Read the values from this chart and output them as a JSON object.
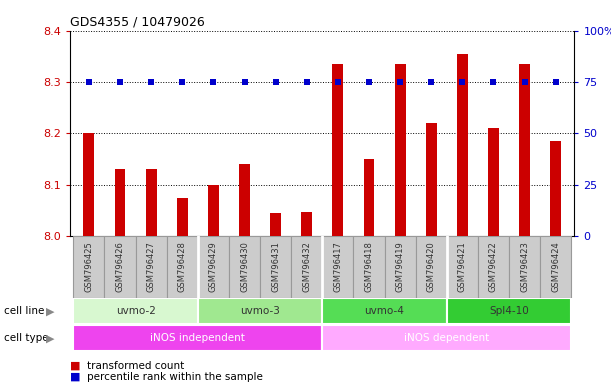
{
  "title": "GDS4355 / 10479026",
  "samples": [
    "GSM796425",
    "GSM796426",
    "GSM796427",
    "GSM796428",
    "GSM796429",
    "GSM796430",
    "GSM796431",
    "GSM796432",
    "GSM796417",
    "GSM796418",
    "GSM796419",
    "GSM796420",
    "GSM796421",
    "GSM796422",
    "GSM796423",
    "GSM796424"
  ],
  "transformed_count": [
    8.2,
    8.13,
    8.13,
    8.075,
    8.1,
    8.14,
    8.045,
    8.048,
    8.335,
    8.15,
    8.335,
    8.22,
    8.355,
    8.21,
    8.335,
    8.185
  ],
  "percentile_rank": [
    75,
    75,
    75,
    75,
    75,
    75,
    75,
    75,
    75,
    75,
    75,
    75,
    75,
    75,
    75,
    75
  ],
  "ylim_left": [
    8.0,
    8.4
  ],
  "ylim_right": [
    0,
    100
  ],
  "yticks_left": [
    8.0,
    8.1,
    8.2,
    8.3,
    8.4
  ],
  "yticks_right": [
    0,
    25,
    50,
    75,
    100
  ],
  "bar_color": "#cc0000",
  "dot_color": "#0000cc",
  "grid_color": "#000000",
  "cell_line_groups": [
    {
      "label": "uvmo-2",
      "start": 0,
      "end": 3,
      "color": "#d8f8d0"
    },
    {
      "label": "uvmo-3",
      "start": 4,
      "end": 7,
      "color": "#a0e890"
    },
    {
      "label": "uvmo-4",
      "start": 8,
      "end": 11,
      "color": "#55dd55"
    },
    {
      "label": "Spl4-10",
      "start": 12,
      "end": 15,
      "color": "#33cc33"
    }
  ],
  "cell_type_groups": [
    {
      "label": "iNOS independent",
      "start": 0,
      "end": 7,
      "color": "#ee44ee"
    },
    {
      "label": "iNOS dependent",
      "start": 8,
      "end": 15,
      "color": "#ffaaff"
    }
  ],
  "legend_items": [
    {
      "label": "transformed count",
      "color": "#cc0000"
    },
    {
      "label": "percentile rank within the sample",
      "color": "#0000cc"
    }
  ],
  "bg_color": "#ffffff",
  "tick_area_color": "#cccccc",
  "tick_area_border": "#999999"
}
